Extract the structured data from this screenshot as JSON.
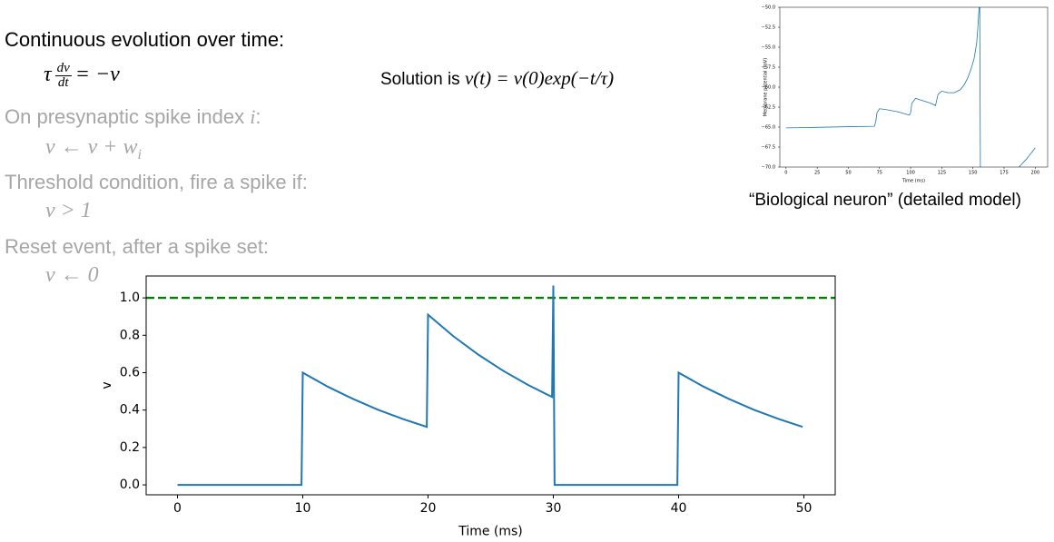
{
  "slide": {
    "heading": "Continuous evolution over time:",
    "equation": {
      "lhs": "τ",
      "numerator": "dv",
      "denominator": "dt",
      "rhs": "= −v"
    },
    "solution": {
      "text": "Solution is",
      "formula": "v(t) = v(0)exp(−t/τ)"
    },
    "rules": [
      {
        "text": "On presynaptic spike index",
        "symbol": "i",
        "end": ":",
        "formula": "v ← v + w",
        "subscript": "i"
      },
      {
        "text": "Threshold condition, fire a spike if:",
        "formula": "v > 1"
      },
      {
        "text": "Reset event, after a spike set:",
        "formula": "v ← 0"
      }
    ],
    "caption": "“Biological neuron” (detailed model)"
  },
  "chart_data": [
    {
      "type": "line",
      "xlabel": "Time (ms)",
      "ylabel": "Membrane potential (mV)",
      "x": [
        0,
        20,
        50,
        71,
        72,
        73,
        75,
        80,
        90,
        99,
        100,
        101,
        104,
        110,
        116,
        120,
        121,
        122,
        125,
        130,
        135,
        140,
        143,
        146,
        149,
        151,
        153,
        154,
        155,
        155.5,
        156,
        165,
        187,
        193,
        200
      ],
      "series": [
        {
          "color": "#1f77b4",
          "values": [
            -65.1,
            -65.05,
            -64.95,
            -64.9,
            -64.3,
            -63.2,
            -62.7,
            -62.8,
            -63.1,
            -63.5,
            -63.2,
            -62.0,
            -61.4,
            -61.7,
            -62.0,
            -62.3,
            -61.6,
            -60.9,
            -60.5,
            -60.7,
            -60.7,
            -60.3,
            -59.7,
            -58.8,
            -57.5,
            -56.4,
            -54.5,
            -52.5,
            -50,
            -50,
            -70,
            null,
            -70,
            -69,
            -67.6
          ]
        }
      ],
      "xlim": [
        -5,
        210
      ],
      "ylim": [
        -70,
        -50
      ],
      "xticks": [
        0,
        25,
        50,
        75,
        100,
        125,
        150,
        175,
        200
      ],
      "yticks": [
        {
          "value": -70,
          "label": "−70.0"
        },
        {
          "value": -67.5,
          "label": "−67.5"
        },
        {
          "value": -65,
          "label": "−65.0"
        },
        {
          "value": -62.5,
          "label": "−62.5"
        },
        {
          "value": -60,
          "label": "−60.0"
        },
        {
          "value": -57.5,
          "label": "−57.5"
        },
        {
          "value": -55,
          "label": "−55.0"
        },
        {
          "value": -52.5,
          "label": "−52.5"
        },
        {
          "value": -50,
          "label": "−50.0"
        }
      ]
    },
    {
      "type": "line",
      "xlabel": "Time (ms)",
      "ylabel": "v",
      "x": [
        0,
        9.9,
        10,
        12,
        14,
        16,
        18,
        19.9,
        20,
        22,
        24,
        26,
        28,
        29.9,
        30,
        30.1,
        39.9,
        40,
        42,
        44,
        46,
        48,
        49.9
      ],
      "series": [
        {
          "color": "#1f77b4",
          "values": [
            0,
            0,
            0.6,
            0.525,
            0.46,
            0.402,
            0.352,
            0.31,
            0.91,
            0.796,
            0.697,
            0.61,
            0.534,
            0.47,
            1.066,
            0,
            0,
            0.6,
            0.525,
            0.46,
            0.402,
            0.352,
            0.31
          ]
        }
      ],
      "hlines": [
        {
          "value": 1.0,
          "color": "#008000",
          "linestyle": "dashed"
        }
      ],
      "xlim": [
        -2.5,
        52.5
      ],
      "ylim": [
        -0.053,
        1.117
      ],
      "xticks": [
        0,
        10,
        20,
        30,
        40,
        50
      ],
      "yticks": [
        {
          "value": 0,
          "label": "0.0"
        },
        {
          "value": 0.2,
          "label": "0.2"
        },
        {
          "value": 0.4,
          "label": "0.4"
        },
        {
          "value": 0.6,
          "label": "0.6"
        },
        {
          "value": 0.8,
          "label": "0.8"
        },
        {
          "value": 1.0,
          "label": "1.0"
        }
      ]
    }
  ]
}
